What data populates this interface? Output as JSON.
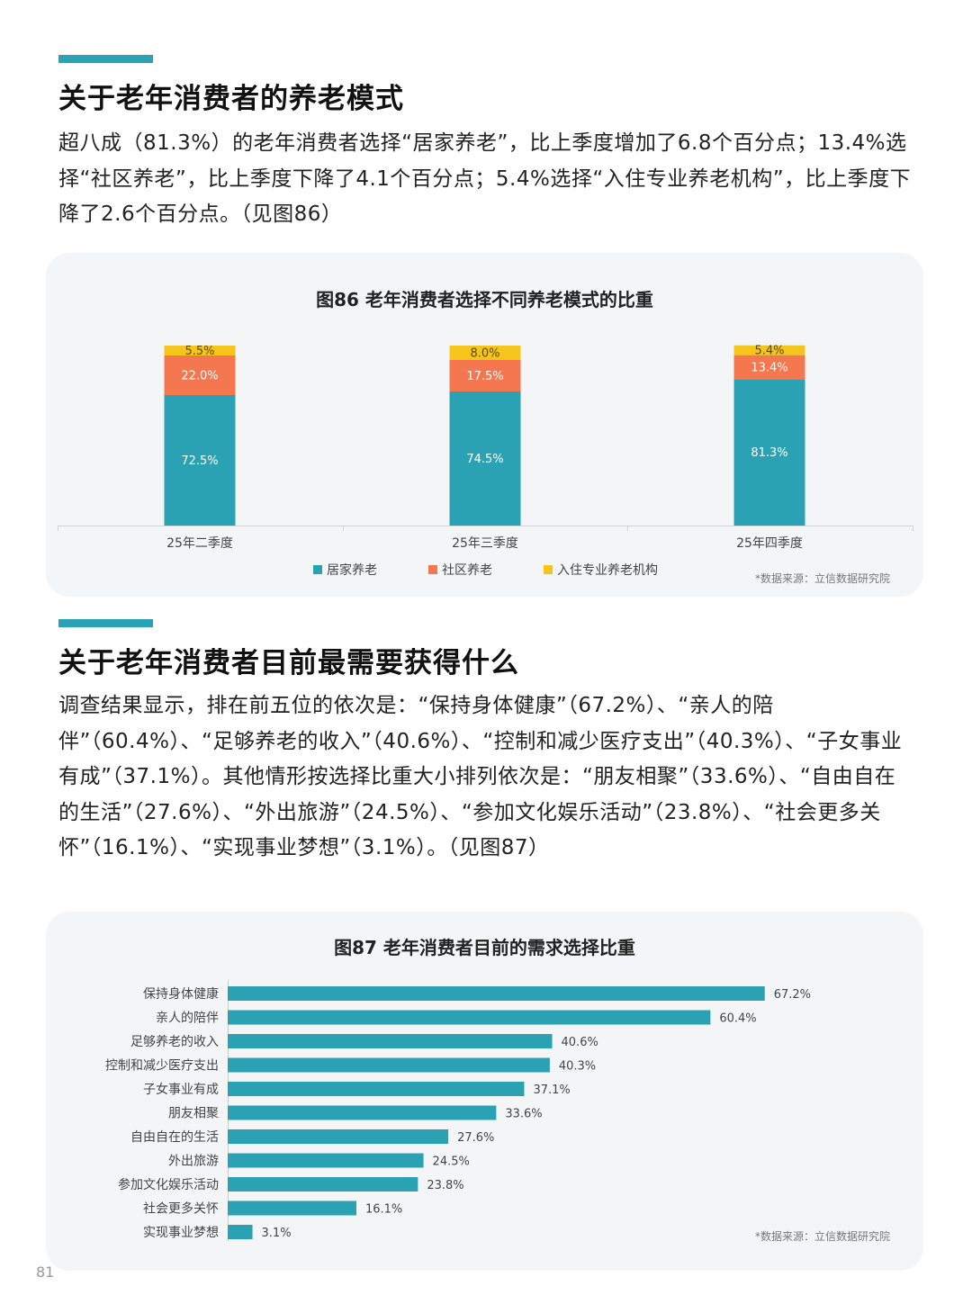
{
  "section1": {
    "title": "关于老年消费者的养老模式",
    "paragraph": "超八成（81.3%）的老年消费者选择“居家养老”，比上季度增加了6.8个百分点；13.4%选择“社区养老”，比上季度下降了4.1个百分点；5.4%选择“入住专业养老机构”，比上季度下降了2.6个百分点。（见图86）"
  },
  "section2": {
    "title": "关于老年消费者目前最需要获得什么",
    "paragraph": "调查结果显示，排在前五位的依次是：“保持身体健康”（67.2%）、“亲人的陪伴”（60.4%）、“足够养老的收入”（40.6%）、“控制和减少医疗支出”（40.3%）、“子女事业有成”（37.1%）。其他情形按选择比重大小排列依次是：“朋友相聚”（33.6%）、“自由自在的生活”（27.6%）、“外出旅游”（24.5%）、“参加文化娱乐活动”（23.8%）、“社会更多关怀”（16.1%）、“实现事业梦想”（3.1%）。（见图87）"
  },
  "colors": {
    "accent": "#2aa2b3",
    "home": "#2aa2b3",
    "community": "#f4774f",
    "institution": "#f6c51c"
  },
  "page_number": "81",
  "chart_data": [
    {
      "type": "bar",
      "stacked": true,
      "title": "图86 老年消费者选择不同养老模式的比重",
      "categories": [
        "25年二季度",
        "25年三季度",
        "25年四季度"
      ],
      "series": [
        {
          "name": "居家养老",
          "values": [
            72.5,
            74.5,
            81.3
          ],
          "labels": [
            "72.5%",
            "74.5%",
            "81.3%"
          ]
        },
        {
          "name": "社区养老",
          "values": [
            22.0,
            17.5,
            13.4
          ],
          "labels": [
            "22.0%",
            "17.5%",
            "13.4%"
          ]
        },
        {
          "name": "入住专业养老机构",
          "values": [
            5.5,
            8.0,
            5.4
          ],
          "labels": [
            "5.5%",
            "8.0%",
            "5.4%"
          ]
        }
      ],
      "ylim": [
        0,
        100
      ],
      "legend": "bottom",
      "grid": false,
      "source": "*数据来源：立信数据研究院"
    },
    {
      "type": "bar",
      "orientation": "horizontal",
      "title": "图87 老年消费者目前的需求选择比重",
      "categories": [
        "保持身体健康",
        "亲人的陪伴",
        "足够养老的收入",
        "控制和减少医疗支出",
        "子女事业有成",
        "朋友相聚",
        "自由自在的生活",
        "外出旅游",
        "参加文化娱乐活动",
        "社会更多关怀",
        "实现事业梦想"
      ],
      "values": [
        67.2,
        60.4,
        40.6,
        40.3,
        37.1,
        33.6,
        27.6,
        24.5,
        23.8,
        16.1,
        3.1
      ],
      "labels": [
        "67.2%",
        "60.4%",
        "40.6%",
        "40.3%",
        "37.1%",
        "33.6%",
        "27.6%",
        "24.5%",
        "23.8%",
        "16.1%",
        "3.1%"
      ],
      "legend": "none",
      "grid": false,
      "source": "*数据来源：立信数据研究院"
    }
  ]
}
